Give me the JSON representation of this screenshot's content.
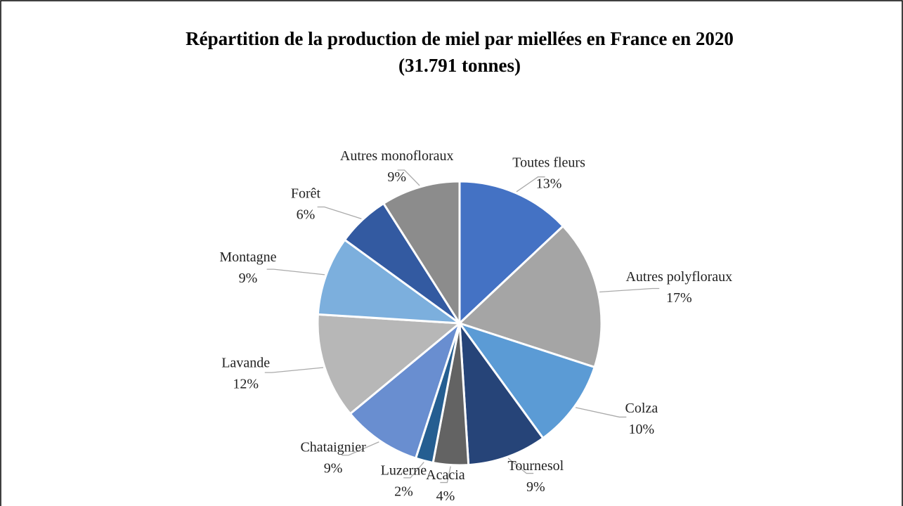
{
  "chart_data": {
    "type": "pie",
    "title": "Répartition de la production de miel par miellées en France en 2020",
    "subtitle": "(31.791 tonnes)",
    "categories": [
      "Toutes fleurs",
      "Autres polyfloraux",
      "Colza",
      "Tournesol",
      "Acacia",
      "Luzerne",
      "Chataignier",
      "Lavande",
      "Montagne",
      "Forêt",
      "Autres monofloraux"
    ],
    "values": [
      13,
      17,
      10,
      9,
      4,
      2,
      9,
      12,
      9,
      6,
      9
    ],
    "value_labels": [
      "13%",
      "17%",
      "10%",
      "9%",
      "4%",
      "2%",
      "9%",
      "12%",
      "9%",
      "6%",
      "9%"
    ],
    "colors": [
      "#4472c4",
      "#a5a5a5",
      "#5b9bd5",
      "#264478",
      "#636363",
      "#255e91",
      "#698ed0",
      "#b7b7b7",
      "#7cafdd",
      "#335aa1",
      "#8c8c8c"
    ]
  }
}
